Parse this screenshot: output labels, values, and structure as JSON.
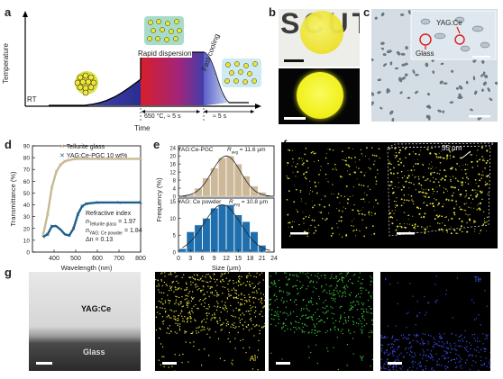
{
  "panels": {
    "a": {
      "letter": "a",
      "ylabel": "Temperature",
      "xlabel": "Time",
      "rt_label": "RT",
      "rapid_label": "Rapid dispersion",
      "cooling_label": "Fast cooling",
      "cond1": "650 °C, ≈ 5 s",
      "cond2": "≈ 5 s"
    },
    "b": {
      "letter": "b",
      "text": "SCUT"
    },
    "c": {
      "letter": "c",
      "label_yag": "YAG:Ce",
      "label_glass": "Glass"
    },
    "d": {
      "letter": "d",
      "legend1": "Tellurite glass",
      "legend2": "YAG:Ce-PGC 10 wt%",
      "ri_title": "Refractive index",
      "ri_line1": "n",
      "ri_sub1": "Tellurite glass",
      "ri_val1": " = 1.97",
      "ri_sub2": "YAG: Ce powder",
      "ri_val2": " = 1.84",
      "ri_line3": "Δn = 0.13",
      "colors": {
        "glass": "#c9b994",
        "pgc": "#1f5f8b"
      }
    },
    "e": {
      "letter": "e",
      "top_label": "YAG:Ce-PGC",
      "top_ravg": "= 11.6 μm",
      "bottom_label": "YAG: Ce powder",
      "bottom_ravg": "= 10.8 μm",
      "ravg_symbol": "R",
      "ravg_sub": "avg",
      "colors": {
        "top": "#cdb99a",
        "bottom": "#1f6fae"
      }
    },
    "f": {
      "letter": "f",
      "scale_label": "35 μm"
    },
    "g": {
      "letter": "g",
      "label_yag": "YAG:Ce",
      "label_glass": "Glass",
      "el_al": "Al",
      "el_y": "Y",
      "el_te": "Te",
      "colors": {
        "al": "#e8e03a",
        "y": "#39c63a",
        "te": "#3a4de8"
      }
    }
  },
  "chart_data": [
    {
      "type": "line",
      "panel": "d",
      "xlabel": "Wavelength (nm)",
      "ylabel": "Transmittance (%)",
      "xlim": [
        300,
        800
      ],
      "ylim": [
        0,
        90
      ],
      "xticks": [
        400,
        500,
        600,
        700,
        800
      ],
      "yticks": [
        0,
        10,
        20,
        30,
        40,
        50,
        60,
        70,
        80,
        90
      ],
      "series": [
        {
          "name": "Tellurite glass",
          "x": [
            350,
            370,
            390,
            410,
            430,
            450,
            470,
            500,
            550,
            600,
            700,
            800
          ],
          "y": [
            15,
            32,
            55,
            68,
            74,
            77,
            78,
            79,
            79,
            79,
            79,
            79
          ]
        },
        {
          "name": "YAG:Ce-PGC 10 wt%",
          "x": [
            350,
            370,
            390,
            410,
            430,
            450,
            470,
            490,
            510,
            530,
            550,
            600,
            700,
            800
          ],
          "y": [
            13,
            15,
            22,
            22,
            19,
            15,
            14,
            20,
            32,
            39,
            41,
            42,
            42,
            42
          ]
        }
      ]
    },
    {
      "type": "bar",
      "panel": "e",
      "xlabel": "Size (μm)",
      "ylabel": "Frequency (%)",
      "xlim": [
        0,
        24
      ],
      "xticks": [
        0,
        3,
        6,
        9,
        12,
        15,
        18,
        21,
        24
      ],
      "subplots": [
        {
          "name": "YAG:Ce-PGC",
          "ylim": [
            0,
            25
          ],
          "yticks": [
            0,
            4,
            8,
            12,
            16,
            20,
            24
          ],
          "x": [
            3,
            5,
            7,
            9,
            11,
            13,
            15,
            17,
            19,
            21
          ],
          "values": [
            1,
            4,
            9,
            14,
            19,
            20,
            16,
            10,
            5,
            2
          ]
        },
        {
          "name": "YAG: Ce powder",
          "ylim": [
            0,
            16
          ],
          "yticks": [
            0,
            5,
            10,
            15
          ],
          "x": [
            1,
            3,
            5,
            7,
            9,
            11,
            13,
            15,
            17,
            19,
            21
          ],
          "values": [
            1,
            6,
            8,
            10,
            13,
            14,
            14,
            11,
            9,
            6,
            2
          ]
        }
      ]
    }
  ]
}
